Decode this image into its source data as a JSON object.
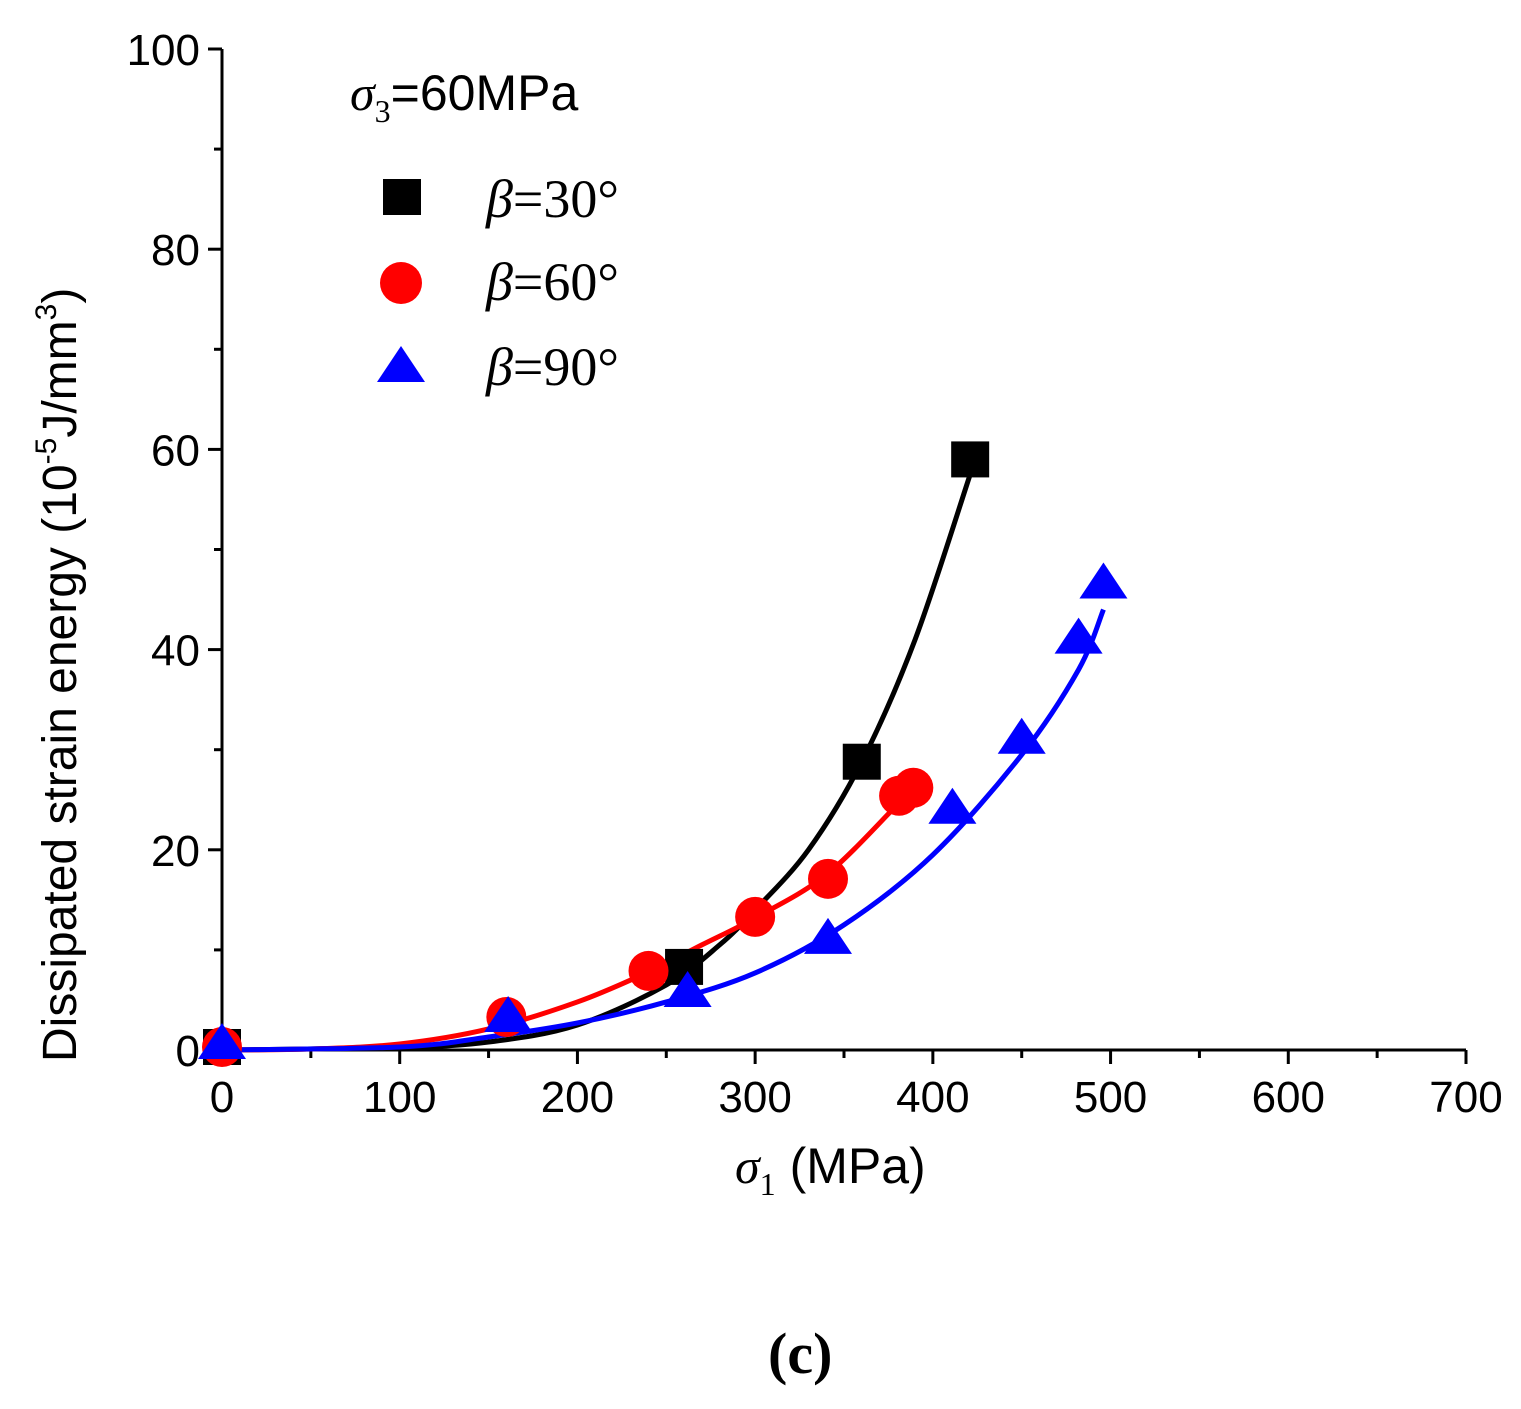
{
  "chart_data": {
    "type": "scatter",
    "panel_label": "c",
    "annotation": {
      "symbol": "σ",
      "sub": "3",
      "text": "=60MPa"
    },
    "xlabel": {
      "symbol": "σ",
      "sub": "1",
      "text": " (MPa)"
    },
    "ylabel": {
      "text": "Dissipated strain energy (10",
      "sup1": "-5",
      "mid": "J/mm",
      "sup2": "3",
      "end": ")"
    },
    "xlim": [
      0,
      700
    ],
    "ylim": [
      0,
      100
    ],
    "xticks": [
      "0",
      "100",
      "200",
      "300",
      "400",
      "500",
      "600",
      "700"
    ],
    "yticks": [
      "0",
      "20",
      "40",
      "60",
      "80",
      "100"
    ],
    "series": [
      {
        "name": "β=30°",
        "legend_symbol": "β",
        "legend_text": "=30°",
        "marker": "square",
        "color": "#000000",
        "x": [
          0,
          260,
          360,
          421
        ],
        "y": [
          0.3,
          8.3,
          28.8,
          59.0
        ],
        "fit": [
          [
            0,
            0
          ],
          [
            100,
            0.25
          ],
          [
            150,
            0.8
          ],
          [
            200,
            2.5
          ],
          [
            250,
            6.5
          ],
          [
            280,
            10.5
          ],
          [
            300,
            14
          ],
          [
            330,
            20
          ],
          [
            360,
            28.8
          ],
          [
            390,
            41
          ],
          [
            421,
            57.5
          ]
        ]
      },
      {
        "name": "β=60°",
        "legend_symbol": "β",
        "legend_text": "=60°",
        "marker": "circle",
        "color": "#ff0000",
        "x": [
          0,
          160,
          240,
          300,
          341,
          381,
          389
        ],
        "y": [
          0.3,
          3.3,
          7.9,
          13.3,
          17.1,
          25.4,
          26.2
        ],
        "fit": [
          [
            0,
            0
          ],
          [
            50,
            0.1
          ],
          [
            100,
            0.6
          ],
          [
            150,
            2.1
          ],
          [
            200,
            4.8
          ],
          [
            240,
            7.8
          ],
          [
            270,
            10.5
          ],
          [
            300,
            13.2
          ],
          [
            340,
            17.5
          ],
          [
            380,
            24.5
          ],
          [
            385,
            25.3
          ]
        ]
      },
      {
        "name": "β=90°",
        "legend_symbol": "β",
        "legend_text": "=90°",
        "marker": "triangle",
        "color": "#0000ff",
        "x": [
          0,
          161,
          262,
          341,
          411,
          450,
          482,
          496
        ],
        "y": [
          0.5,
          3.2,
          5.7,
          11.0,
          24.0,
          31.0,
          41.0,
          46.5
        ],
        "fit": [
          [
            0,
            0
          ],
          [
            100,
            0.3
          ],
          [
            150,
            1.3
          ],
          [
            200,
            2.7
          ],
          [
            250,
            4.8
          ],
          [
            300,
            7.7
          ],
          [
            350,
            12.5
          ],
          [
            400,
            19.5
          ],
          [
            450,
            29.5
          ],
          [
            482,
            38
          ],
          [
            496,
            44
          ]
        ]
      }
    ]
  }
}
